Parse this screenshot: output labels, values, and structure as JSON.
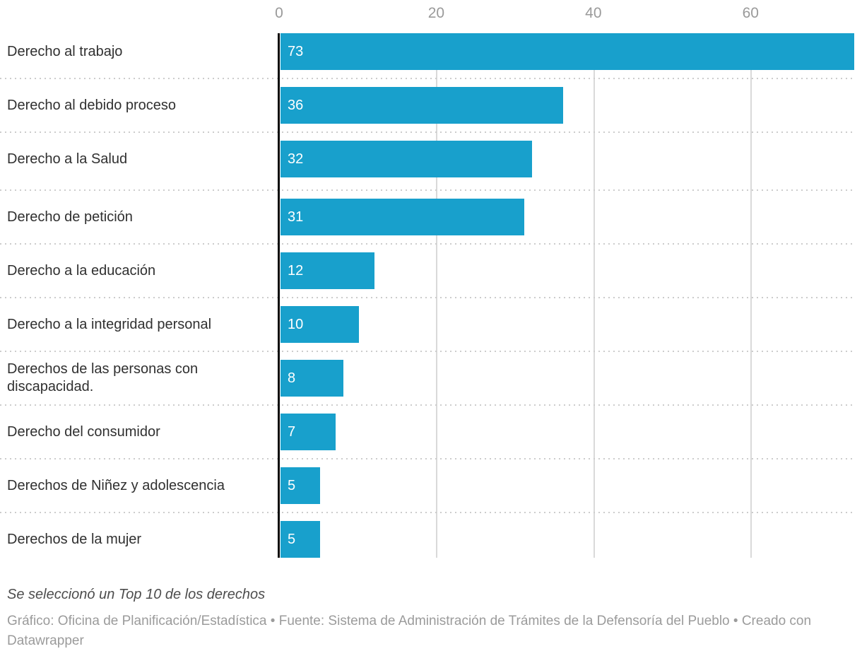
{
  "chart_data": {
    "type": "bar",
    "orientation": "horizontal",
    "categories": [
      "Derecho al trabajo",
      "Derecho al debido proceso",
      "Derecho a la Salud",
      "Derecho de petición",
      "Derecho a la educación",
      "Derecho a la integridad personal",
      "Derechos de las personas con discapacidad.",
      "Derecho del consumidor",
      "Derechos de Niñez y adolescencia",
      "Derechos de la mujer"
    ],
    "values": [
      73,
      36,
      32,
      31,
      12,
      10,
      8,
      7,
      5,
      5
    ],
    "x_ticks": [
      0,
      20,
      40,
      60
    ],
    "xlim": [
      0,
      74
    ],
    "grid": true,
    "legend_position": "none",
    "bar_color": "#18a0cc",
    "value_label_color": "#ffffff",
    "tick_label_color": "#9a9a9a",
    "category_label_color": "#303030"
  },
  "footer": {
    "note": "Se seleccionó un Top 10 de los derechos",
    "attribution": "Gráfico: Oficina de Planificación/Estadística • Fuente: Sistema de Administración de Trámites de la Defensoría del Pueblo • Creado con Datawrapper"
  }
}
